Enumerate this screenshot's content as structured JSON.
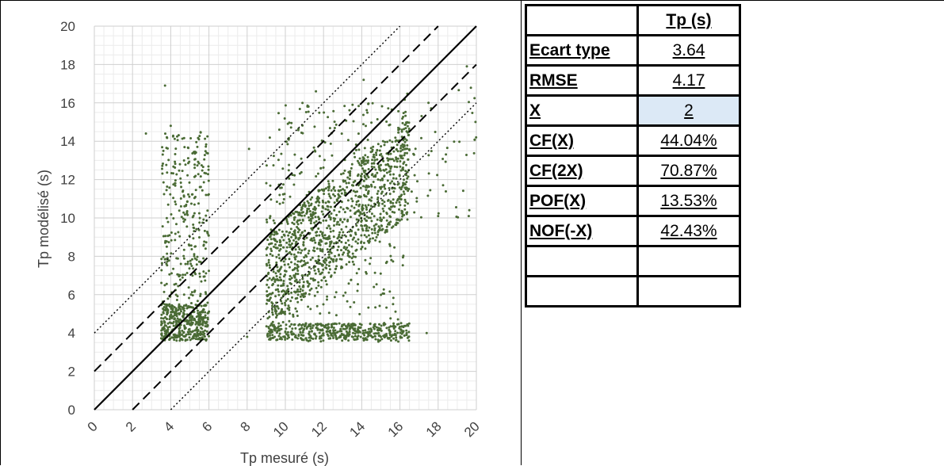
{
  "chart_data": {
    "type": "scatter",
    "xlabel": "Tp mesuré (s)",
    "ylabel": "Tp modélisé (s)",
    "xlim": [
      0,
      20
    ],
    "ylim": [
      0,
      20
    ],
    "x_ticks": [
      "0",
      "2",
      "4",
      "6",
      "8",
      "10",
      "12",
      "14",
      "16",
      "18",
      "20"
    ],
    "y_ticks": [
      "0",
      "2",
      "4",
      "6",
      "8",
      "10",
      "12",
      "14",
      "16",
      "18",
      "20"
    ],
    "grid": "major-and-minor",
    "point_color": "#4a6b35",
    "reference_lines": [
      {
        "style": "solid",
        "intercept": 0
      },
      {
        "style": "dashed",
        "intercept": 2
      },
      {
        "style": "dashed",
        "intercept": -2
      },
      {
        "style": "dotted",
        "intercept": 4
      },
      {
        "style": "dotted",
        "intercept": -4
      }
    ],
    "clusters": [
      {
        "x": [
          3.5,
          6
        ],
        "y": [
          3.6,
          14.5
        ],
        "dense_y": [
          3.6,
          5.5
        ],
        "n": 700
      },
      {
        "x": [
          9,
          16.5
        ],
        "y": [
          3.5,
          16
        ],
        "dense_y": [
          3.6,
          4.5
        ],
        "n": 1900
      },
      {
        "x": [
          16,
          20
        ],
        "y": [
          4,
          18
        ],
        "dense_y": [
          10,
          17
        ],
        "n": 60
      }
    ],
    "points": [
      {
        "x": 3.7,
        "y": 16.9
      },
      {
        "x": 4.0,
        "y": 14.8
      },
      {
        "x": 2.7,
        "y": 14.4
      },
      {
        "x": 19.5,
        "y": 17.9
      },
      {
        "x": 19.6,
        "y": 10.1
      },
      {
        "x": 18.0,
        "y": 10.1
      },
      {
        "x": 14.1,
        "y": 17.2
      },
      {
        "x": 11.6,
        "y": 16.6
      },
      {
        "x": 8.1,
        "y": 13.6
      },
      {
        "x": 17.4,
        "y": 4.0
      },
      {
        "x": 15.0,
        "y": 3.8
      },
      {
        "x": 8.0,
        "y": 3.8
      }
    ]
  },
  "table": {
    "header": [
      "",
      "Tp (s)"
    ],
    "rows": [
      {
        "label": "Ecart type",
        "value": "3.64",
        "highlight": false
      },
      {
        "label": "RMSE",
        "value": "4.17",
        "highlight": false
      },
      {
        "label": "X",
        "value": "2",
        "highlight": true
      },
      {
        "label": "CF(X)",
        "value": "44.04%",
        "highlight": false
      },
      {
        "label": "CF(2X)",
        "value": "70.87%",
        "highlight": false
      },
      {
        "label": "POF(X)",
        "value": "13.53%",
        "highlight": false
      },
      {
        "label": "NOF(-X)",
        "value": "42.43%",
        "highlight": false
      },
      {
        "label": "",
        "value": "",
        "highlight": false
      },
      {
        "label": "",
        "value": "",
        "highlight": false
      }
    ],
    "highlight_color": "#dce9f6"
  }
}
